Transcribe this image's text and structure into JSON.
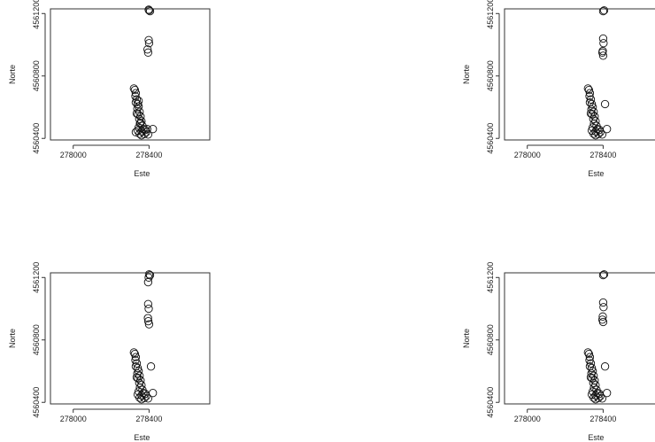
{
  "chart_data": [
    {
      "type": "scatter",
      "xlabel": "Este",
      "ylabel": "Norte",
      "xticks": [
        278000,
        278400
      ],
      "yticks": [
        4560400,
        4560800,
        4561200
      ],
      "xlim": [
        277880,
        278720
      ],
      "ylim": [
        4560390,
        4561230
      ],
      "points": [
        [
          278400,
          4561220
        ],
        [
          278405,
          4561215
        ],
        [
          278398,
          4561225
        ],
        [
          278398,
          4561030
        ],
        [
          278400,
          4561010
        ],
        [
          278392,
          4560970
        ],
        [
          278395,
          4560950
        ],
        [
          278320,
          4560720
        ],
        [
          278325,
          4560710
        ],
        [
          278330,
          4560690
        ],
        [
          278328,
          4560670
        ],
        [
          278335,
          4560650
        ],
        [
          278330,
          4560630
        ],
        [
          278340,
          4560620
        ],
        [
          278345,
          4560605
        ],
        [
          278338,
          4560590
        ],
        [
          278350,
          4560570
        ],
        [
          278342,
          4560555
        ],
        [
          278355,
          4560540
        ],
        [
          278348,
          4560525
        ],
        [
          278360,
          4560510
        ],
        [
          278352,
          4560495
        ],
        [
          278365,
          4560480
        ],
        [
          278345,
          4560470
        ],
        [
          278370,
          4560460
        ],
        [
          278380,
          4560455
        ],
        [
          278340,
          4560450
        ],
        [
          278360,
          4560445
        ],
        [
          278385,
          4560440
        ],
        [
          278350,
          4560430
        ],
        [
          278375,
          4560428
        ],
        [
          278395,
          4560425
        ],
        [
          278330,
          4560440
        ],
        [
          278360,
          4560420
        ],
        [
          278390,
          4560460
        ],
        [
          278420,
          4560460
        ],
        [
          278355,
          4560500
        ],
        [
          278335,
          4560560
        ],
        [
          278345,
          4560640
        ]
      ]
    },
    {
      "type": "scatter",
      "xlabel": "Este",
      "ylabel": "Norte",
      "xticks": [
        278000,
        278400
      ],
      "yticks": [
        4560400,
        4560800,
        4561200
      ],
      "xlim": [
        277880,
        278720
      ],
      "ylim": [
        4560390,
        4561230
      ],
      "points": [
        [
          278405,
          4561220
        ],
        [
          278400,
          4561215
        ],
        [
          278400,
          4561040
        ],
        [
          278402,
          4561010
        ],
        [
          278398,
          4560960
        ],
        [
          278396,
          4560950
        ],
        [
          278400,
          4560930
        ],
        [
          278410,
          4560620
        ],
        [
          278320,
          4560720
        ],
        [
          278325,
          4560710
        ],
        [
          278330,
          4560690
        ],
        [
          278328,
          4560670
        ],
        [
          278335,
          4560650
        ],
        [
          278330,
          4560630
        ],
        [
          278340,
          4560620
        ],
        [
          278345,
          4560600
        ],
        [
          278338,
          4560585
        ],
        [
          278350,
          4560570
        ],
        [
          278342,
          4560555
        ],
        [
          278355,
          4560540
        ],
        [
          278348,
          4560525
        ],
        [
          278360,
          4560510
        ],
        [
          278352,
          4560495
        ],
        [
          278365,
          4560480
        ],
        [
          278345,
          4560470
        ],
        [
          278370,
          4560460
        ],
        [
          278380,
          4560455
        ],
        [
          278340,
          4560450
        ],
        [
          278360,
          4560445
        ],
        [
          278385,
          4560440
        ],
        [
          278350,
          4560430
        ],
        [
          278375,
          4560428
        ],
        [
          278395,
          4560425
        ],
        [
          278360,
          4560420
        ],
        [
          278420,
          4560460
        ],
        [
          278335,
          4560560
        ]
      ]
    },
    {
      "type": "scatter",
      "xlabel": "Este",
      "ylabel": "Norte",
      "xticks": [
        278000,
        278400
      ],
      "yticks": [
        4560400,
        4560800,
        4561200
      ],
      "xlim": [
        277880,
        278720
      ],
      "ylim": [
        4560390,
        4561230
      ],
      "points": [
        [
          278400,
          4561220
        ],
        [
          278405,
          4561215
        ],
        [
          278398,
          4561200
        ],
        [
          278395,
          4561170
        ],
        [
          278395,
          4561030
        ],
        [
          278398,
          4561000
        ],
        [
          278394,
          4560940
        ],
        [
          278396,
          4560920
        ],
        [
          278400,
          4560900
        ],
        [
          278410,
          4560630
        ],
        [
          278320,
          4560720
        ],
        [
          278325,
          4560710
        ],
        [
          278330,
          4560690
        ],
        [
          278328,
          4560670
        ],
        [
          278335,
          4560650
        ],
        [
          278330,
          4560630
        ],
        [
          278340,
          4560620
        ],
        [
          278345,
          4560600
        ],
        [
          278338,
          4560585
        ],
        [
          278350,
          4560570
        ],
        [
          278342,
          4560555
        ],
        [
          278355,
          4560540
        ],
        [
          278348,
          4560525
        ],
        [
          278360,
          4560510
        ],
        [
          278352,
          4560495
        ],
        [
          278365,
          4560480
        ],
        [
          278345,
          4560470
        ],
        [
          278370,
          4560460
        ],
        [
          278380,
          4560455
        ],
        [
          278340,
          4560450
        ],
        [
          278360,
          4560445
        ],
        [
          278385,
          4560440
        ],
        [
          278350,
          4560430
        ],
        [
          278375,
          4560428
        ],
        [
          278395,
          4560425
        ],
        [
          278360,
          4560420
        ],
        [
          278420,
          4560460
        ],
        [
          278335,
          4560560
        ]
      ]
    },
    {
      "type": "scatter",
      "xlabel": "Este",
      "ylabel": "Norte",
      "xticks": [
        278000,
        278400
      ],
      "yticks": [
        4560400,
        4560800,
        4561200
      ],
      "xlim": [
        277880,
        278720
      ],
      "ylim": [
        4560390,
        4561230
      ],
      "points": [
        [
          278405,
          4561220
        ],
        [
          278400,
          4561215
        ],
        [
          278400,
          4561040
        ],
        [
          278402,
          4561010
        ],
        [
          278398,
          4560950
        ],
        [
          278396,
          4560930
        ],
        [
          278400,
          4560915
        ],
        [
          278410,
          4560630
        ],
        [
          278320,
          4560720
        ],
        [
          278325,
          4560710
        ],
        [
          278330,
          4560690
        ],
        [
          278328,
          4560670
        ],
        [
          278335,
          4560650
        ],
        [
          278330,
          4560630
        ],
        [
          278340,
          4560620
        ],
        [
          278345,
          4560600
        ],
        [
          278338,
          4560585
        ],
        [
          278350,
          4560570
        ],
        [
          278342,
          4560555
        ],
        [
          278355,
          4560540
        ],
        [
          278348,
          4560525
        ],
        [
          278360,
          4560510
        ],
        [
          278352,
          4560495
        ],
        [
          278365,
          4560480
        ],
        [
          278345,
          4560470
        ],
        [
          278370,
          4560460
        ],
        [
          278380,
          4560455
        ],
        [
          278340,
          4560450
        ],
        [
          278360,
          4560445
        ],
        [
          278385,
          4560440
        ],
        [
          278350,
          4560430
        ],
        [
          278375,
          4560428
        ],
        [
          278395,
          4560425
        ],
        [
          278360,
          4560420
        ],
        [
          278420,
          4560460
        ],
        [
          278335,
          4560560
        ]
      ]
    }
  ]
}
